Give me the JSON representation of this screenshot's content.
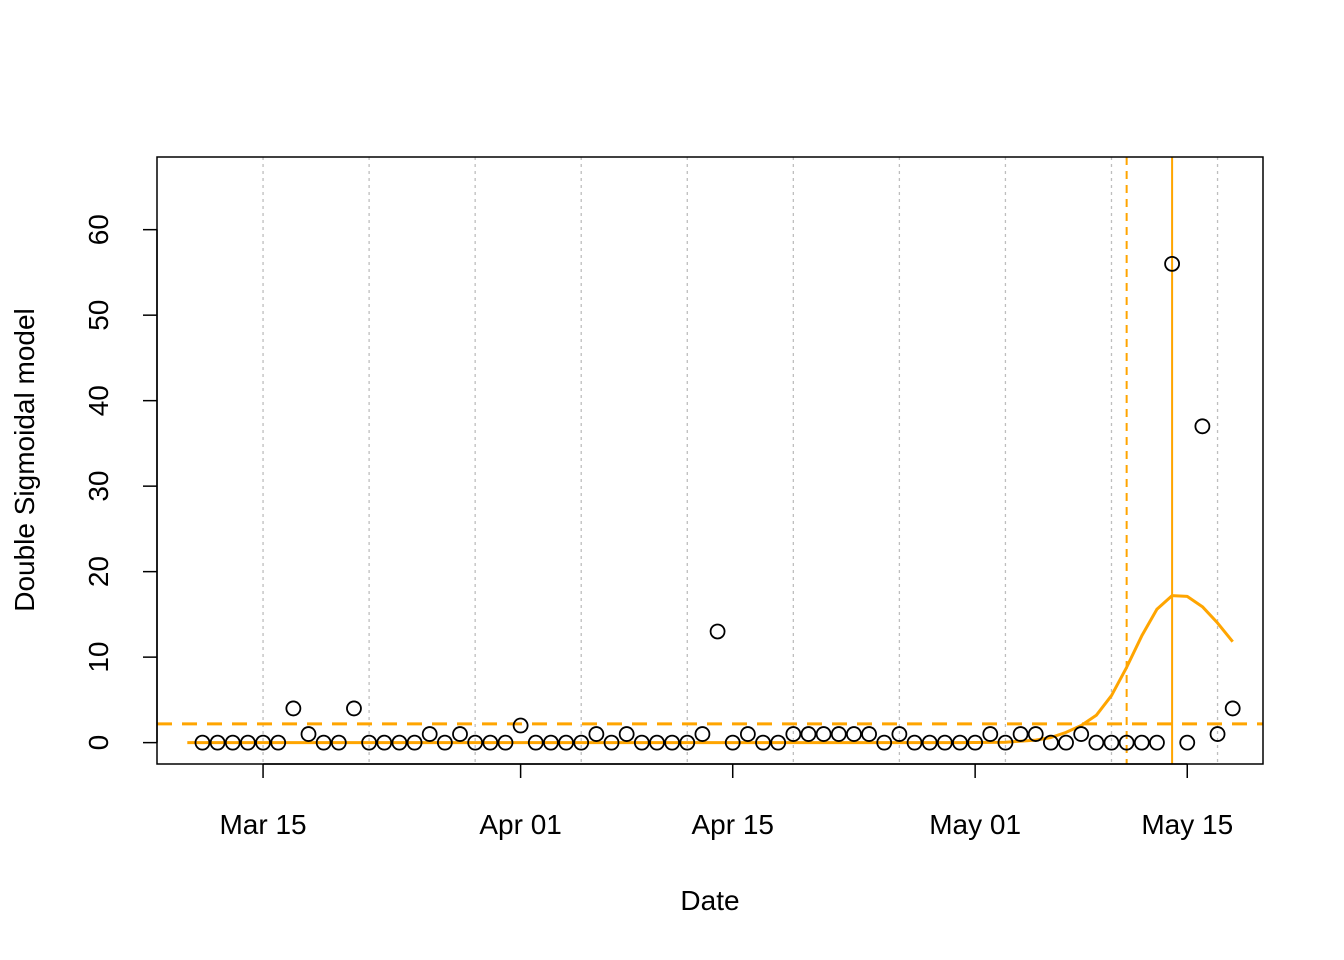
{
  "chart_data": {
    "type": "scatter",
    "title": "",
    "xlabel": "Date",
    "ylabel": "Double Sigmoidal model",
    "x_axis_type": "date",
    "xlim": [
      "2020-03-08",
      "2020-05-20"
    ],
    "ylim": [
      -2.5,
      68.5
    ],
    "x_ticks": [
      {
        "date": "2020-03-15",
        "label": "Mar 15"
      },
      {
        "date": "2020-04-01",
        "label": "Apr 01"
      },
      {
        "date": "2020-04-15",
        "label": "Apr 15"
      },
      {
        "date": "2020-05-01",
        "label": "May 01"
      },
      {
        "date": "2020-05-15",
        "label": "May 15"
      }
    ],
    "y_ticks": [
      0,
      10,
      20,
      30,
      40,
      50,
      60
    ],
    "grid": {
      "vertical_dotted_dates": [
        "2020-03-15",
        "2020-03-22",
        "2020-03-29",
        "2020-04-05",
        "2020-04-12",
        "2020-04-19",
        "2020-04-26",
        "2020-05-03",
        "2020-05-10",
        "2020-05-17"
      ],
      "color": "#bebebe"
    },
    "series": [
      {
        "type": "points",
        "color": "#000000",
        "x": [
          "2020-03-11",
          "2020-03-12",
          "2020-03-13",
          "2020-03-14",
          "2020-03-15",
          "2020-03-16",
          "2020-03-17",
          "2020-03-18",
          "2020-03-19",
          "2020-03-20",
          "2020-03-21",
          "2020-03-22",
          "2020-03-23",
          "2020-03-24",
          "2020-03-25",
          "2020-03-26",
          "2020-03-27",
          "2020-03-28",
          "2020-03-29",
          "2020-03-30",
          "2020-03-31",
          "2020-04-01",
          "2020-04-02",
          "2020-04-03",
          "2020-04-04",
          "2020-04-05",
          "2020-04-06",
          "2020-04-07",
          "2020-04-08",
          "2020-04-09",
          "2020-04-10",
          "2020-04-11",
          "2020-04-12",
          "2020-04-13",
          "2020-04-14",
          "2020-04-15",
          "2020-04-16",
          "2020-04-17",
          "2020-04-18",
          "2020-04-19",
          "2020-04-20",
          "2020-04-21",
          "2020-04-22",
          "2020-04-23",
          "2020-04-24",
          "2020-04-25",
          "2020-04-26",
          "2020-04-27",
          "2020-04-28",
          "2020-04-29",
          "2020-04-30",
          "2020-05-01",
          "2020-05-02",
          "2020-05-03",
          "2020-05-04",
          "2020-05-05",
          "2020-05-06",
          "2020-05-07",
          "2020-05-08",
          "2020-05-09",
          "2020-05-10",
          "2020-05-11",
          "2020-05-12",
          "2020-05-13",
          "2020-05-14",
          "2020-05-15",
          "2020-05-16",
          "2020-05-17",
          "2020-05-18"
        ],
        "y": [
          0,
          0,
          0,
          0,
          0,
          0,
          4,
          1,
          0,
          0,
          4,
          0,
          0,
          0,
          0,
          1,
          0,
          1,
          0,
          0,
          0,
          2,
          0,
          0,
          0,
          0,
          1,
          0,
          1,
          0,
          0,
          0,
          0,
          1,
          13,
          0,
          1,
          0,
          0,
          1,
          1,
          1,
          1,
          1,
          1,
          0,
          1,
          0,
          0,
          0,
          0,
          0,
          1,
          0,
          1,
          1,
          0,
          0,
          1,
          0,
          0,
          0,
          0,
          0,
          56,
          0,
          37,
          1,
          4
        ]
      },
      {
        "type": "fitted_line",
        "color": "#ffa500",
        "x": [
          "2020-03-10",
          "2020-03-20",
          "2020-04-01",
          "2020-04-15",
          "2020-04-30",
          "2020-05-03",
          "2020-05-05",
          "2020-05-06",
          "2020-05-07",
          "2020-05-08",
          "2020-05-09",
          "2020-05-10",
          "2020-05-11",
          "2020-05-12",
          "2020-05-13",
          "2020-05-14",
          "2020-05-15",
          "2020-05-16",
          "2020-05-17",
          "2020-05-18"
        ],
        "y": [
          0,
          0,
          0,
          0,
          0,
          0.05,
          0.3,
          0.6,
          1.2,
          2.0,
          3.2,
          5.5,
          8.8,
          12.5,
          15.6,
          17.2,
          17.1,
          15.9,
          14.0,
          11.8
        ]
      }
    ],
    "reference_lines": [
      {
        "orientation": "horizontal",
        "y": 2.2,
        "style": "dashed",
        "color": "#ffa500"
      },
      {
        "orientation": "vertical",
        "x": "2020-05-11",
        "style": "dashed",
        "color": "#ffa500"
      },
      {
        "orientation": "vertical",
        "x": "2020-05-14",
        "style": "solid",
        "color": "#ffa500"
      }
    ]
  }
}
